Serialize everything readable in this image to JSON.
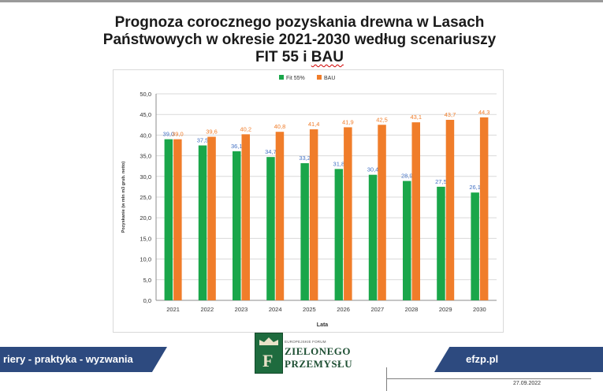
{
  "slide": {
    "title_part1": "Prognoza corocznego pozyskania drewna w Lasach",
    "title_part2": "Państwowych w okresie 2021-2030 według scenariuszy",
    "title_part3": "FIT 55 i ",
    "title_underlined": "BAU",
    "banner_left": "riery - praktyka - wyzwania",
    "banner_right": "efzp.pl",
    "date": "27.09.2022",
    "logo_small": "EUROPEJSKIE FORUM",
    "logo_line1": "ZIELONEGO",
    "logo_line2": "PRZEMYSŁU"
  },
  "colors": {
    "fit55": "#1aa64a",
    "bau": "#f07d2a",
    "fit55_label": "#4472c4",
    "bau_label": "#f07d2a",
    "banner": "#2d4a7f"
  },
  "chart_data": {
    "type": "bar",
    "title": "",
    "xlabel": "Lata",
    "ylabel": "Pozyskanie (w mln m3 grub. netto)",
    "ylim": [
      0,
      50
    ],
    "ytick_step": 5,
    "ytick_labels": [
      "0,0",
      "5,0",
      "10,0",
      "15,0",
      "20,0",
      "25,0",
      "30,0",
      "35,0",
      "40,0",
      "45,0",
      "50,0"
    ],
    "grid": true,
    "legend_position": "top",
    "categories": [
      "2021",
      "2022",
      "2023",
      "2024",
      "2025",
      "2026",
      "2027",
      "2028",
      "2029",
      "2030"
    ],
    "series": [
      {
        "name": "Fit 55%",
        "values": [
          39.0,
          37.5,
          36.1,
          34.7,
          33.2,
          31.8,
          30.4,
          28.9,
          27.5,
          26.1
        ],
        "labels": [
          "39,0",
          "37,5",
          "36,1",
          "34,7",
          "33,2",
          "31,8",
          "30,4",
          "28,9",
          "27,5",
          "26,1"
        ]
      },
      {
        "name": "BAU",
        "values": [
          39.0,
          39.6,
          40.2,
          40.8,
          41.4,
          41.9,
          42.5,
          43.1,
          43.7,
          44.3
        ],
        "labels": [
          "39,0",
          "39,6",
          "40,2",
          "40,8",
          "41,4",
          "41,9",
          "42,5",
          "43,1",
          "43,7",
          "44,3"
        ]
      }
    ]
  }
}
